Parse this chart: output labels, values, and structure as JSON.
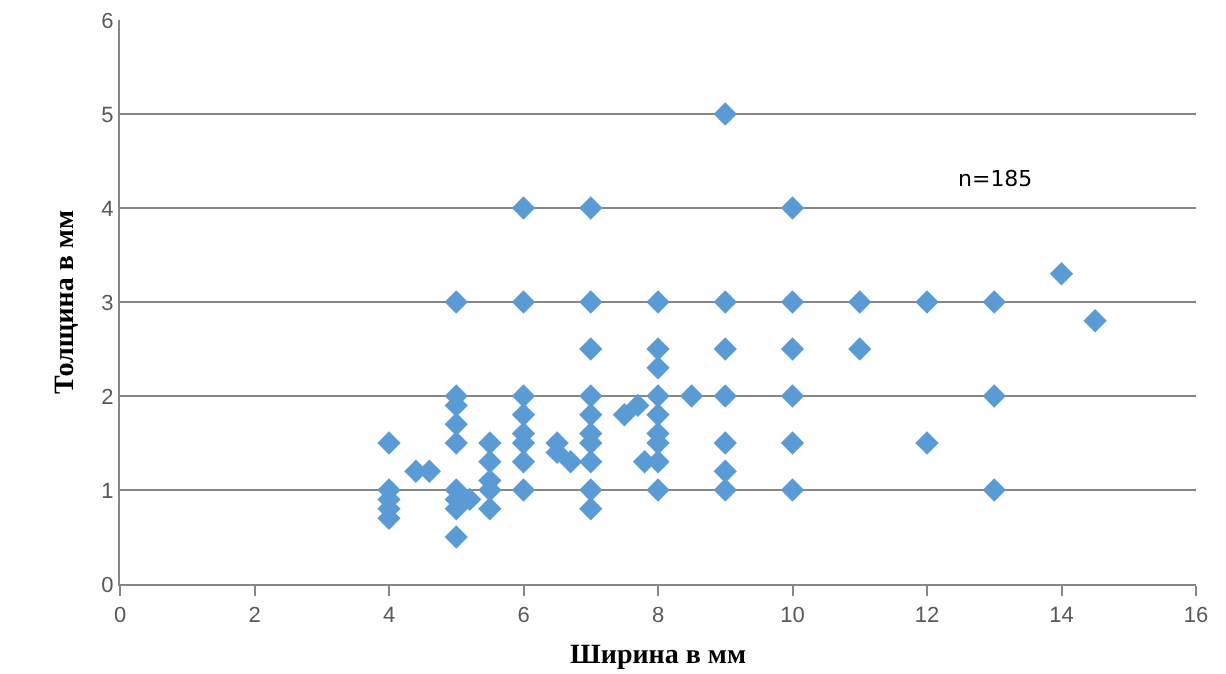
{
  "chart_data": {
    "type": "scatter",
    "xlabel": "Ширина в мм",
    "ylabel": "Толщина в мм",
    "annotations": [
      "n=185"
    ],
    "x": [
      4,
      4,
      4,
      4,
      4,
      4.4,
      4.6,
      5,
      5,
      5,
      5,
      5,
      5,
      5,
      5,
      5,
      5.2,
      5.5,
      5.5,
      5.5,
      5.5,
      5.5,
      6,
      6,
      6,
      6,
      6,
      6,
      6,
      6,
      6.5,
      6.5,
      6.7,
      7,
      7,
      7,
      7,
      7,
      7,
      7,
      7,
      7,
      7,
      7.5,
      7.7,
      7.8,
      8,
      8,
      8,
      8,
      8,
      8,
      8,
      8,
      8,
      8.5,
      9,
      9,
      9,
      9,
      9,
      9,
      9,
      10,
      10,
      10,
      10,
      10,
      10,
      11,
      11,
      12,
      12,
      13,
      13,
      13,
      14,
      14.5
    ],
    "values": [
      1.5,
      1.0,
      0.9,
      0.8,
      0.7,
      1.2,
      1.2,
      3,
      2,
      1.9,
      1.7,
      1.5,
      1.0,
      0.9,
      0.8,
      0.5,
      0.9,
      1.5,
      1.3,
      1.1,
      1.0,
      0.8,
      4,
      3,
      2,
      1.8,
      1.6,
      1.5,
      1.3,
      1.0,
      1.5,
      1.4,
      1.3,
      4,
      3,
      2.5,
      2,
      1.8,
      1.6,
      1.5,
      1.3,
      1.0,
      0.8,
      1.8,
      1.9,
      1.3,
      3,
      2.5,
      2.3,
      2,
      1.8,
      1.6,
      1.5,
      1.3,
      1.0,
      2,
      5,
      3,
      2.5,
      2,
      1.5,
      1.2,
      1.0,
      4,
      3,
      2.5,
      2,
      1.5,
      1.0,
      3,
      2.5,
      3,
      1.5,
      3,
      2,
      1,
      3.3,
      2.8
    ],
    "color": "#5b9bd5",
    "marker": "diamond",
    "xlim": [
      0,
      16
    ],
    "xticks": [
      0,
      2,
      4,
      6,
      8,
      10,
      12,
      14,
      16
    ],
    "ylim": [
      0,
      6
    ],
    "yticks": [
      0,
      1,
      2,
      3,
      4,
      5,
      6
    ],
    "grid": "y"
  }
}
